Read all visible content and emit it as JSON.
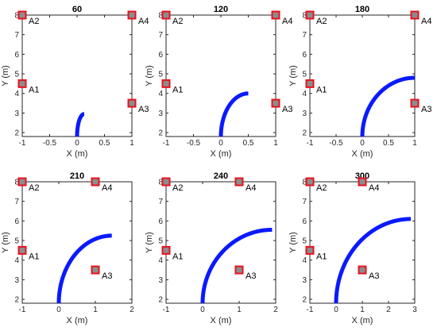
{
  "chart_data": [
    {
      "type": "scatter",
      "title": "60",
      "xlabel": "X (m)",
      "ylabel": "Y (m)",
      "xlim": [
        -1,
        1
      ],
      "ylim": [
        1.8,
        8
      ],
      "xticks": [
        "-1",
        "-0.5",
        "0",
        "0.5",
        "1"
      ],
      "yticks": [
        "2",
        "3",
        "4",
        "5",
        "6",
        "7",
        "8"
      ],
      "anchors": [
        {
          "name": "A1",
          "x": -1,
          "y": 4.5
        },
        {
          "name": "A2",
          "x": -1,
          "y": 8
        },
        {
          "name": "A3",
          "x": 1,
          "y": 3.5
        },
        {
          "name": "A4",
          "x": 1,
          "y": 8
        }
      ],
      "trajectory": {
        "start": [
          0,
          1.8
        ],
        "end": [
          0.13,
          2.95
        ]
      }
    },
    {
      "type": "scatter",
      "title": "120",
      "xlabel": "X (m)",
      "ylabel": "Y (m)",
      "xlim": [
        -1,
        1
      ],
      "ylim": [
        1.8,
        8
      ],
      "xticks": [
        "-1",
        "-0.5",
        "0",
        "0.5",
        "1"
      ],
      "yticks": [
        "2",
        "3",
        "4",
        "5",
        "6",
        "7",
        "8"
      ],
      "anchors": [
        {
          "name": "A1",
          "x": -1,
          "y": 4.5
        },
        {
          "name": "A2",
          "x": -1,
          "y": 8
        },
        {
          "name": "A3",
          "x": 1,
          "y": 3.5
        },
        {
          "name": "A4",
          "x": 1,
          "y": 8
        }
      ],
      "trajectory": {
        "start": [
          0,
          1.8
        ],
        "end": [
          0.5,
          4.0
        ]
      }
    },
    {
      "type": "scatter",
      "title": "180",
      "xlabel": "X (m)",
      "ylabel": "Y (m)",
      "xlim": [
        -1,
        1
      ],
      "ylim": [
        1.8,
        8
      ],
      "xticks": [
        "-1",
        "-0.5",
        "0",
        "0.5",
        "1"
      ],
      "yticks": [
        "2",
        "3",
        "4",
        "5",
        "6",
        "7",
        "8"
      ],
      "anchors": [
        {
          "name": "A1",
          "x": -1,
          "y": 4.5
        },
        {
          "name": "A2",
          "x": -1,
          "y": 8
        },
        {
          "name": "A3",
          "x": 1,
          "y": 3.5
        },
        {
          "name": "A4",
          "x": 1,
          "y": 8
        }
      ],
      "trajectory": {
        "start": [
          0,
          1.8
        ],
        "end": [
          1.0,
          4.8
        ]
      }
    },
    {
      "type": "scatter",
      "title": "210",
      "xlabel": "X (m)",
      "ylabel": "Y (m)",
      "xlim": [
        -1,
        2
      ],
      "ylim": [
        1.8,
        8
      ],
      "xticks": [
        "-1",
        "0",
        "1",
        "2"
      ],
      "yticks": [
        "2",
        "3",
        "4",
        "5",
        "6",
        "7",
        "8"
      ],
      "anchors": [
        {
          "name": "A1",
          "x": -1,
          "y": 4.5
        },
        {
          "name": "A2",
          "x": -1,
          "y": 8
        },
        {
          "name": "A3",
          "x": 1,
          "y": 3.5
        },
        {
          "name": "A4",
          "x": 1,
          "y": 8
        }
      ],
      "trajectory": {
        "start": [
          0,
          1.8
        ],
        "end": [
          1.45,
          5.25
        ]
      }
    },
    {
      "type": "scatter",
      "title": "240",
      "xlabel": "X (m)",
      "ylabel": "Y (m)",
      "xlim": [
        -1,
        2
      ],
      "ylim": [
        1.8,
        8
      ],
      "xticks": [
        "-1",
        "0",
        "1",
        "2"
      ],
      "yticks": [
        "2",
        "3",
        "4",
        "5",
        "6",
        "7",
        "8"
      ],
      "anchors": [
        {
          "name": "A1",
          "x": -1,
          "y": 4.5
        },
        {
          "name": "A2",
          "x": -1,
          "y": 8
        },
        {
          "name": "A3",
          "x": 1,
          "y": 3.5
        },
        {
          "name": "A4",
          "x": 1,
          "y": 8
        }
      ],
      "trajectory": {
        "start": [
          0,
          1.8
        ],
        "end": [
          1.9,
          5.55
        ]
      }
    },
    {
      "type": "scatter",
      "title": "300",
      "xlabel": "X (m)",
      "ylabel": "Y (m)",
      "xlim": [
        -1,
        3
      ],
      "ylim": [
        1.8,
        8
      ],
      "xticks": [
        "-1",
        "0",
        "1",
        "2",
        "3"
      ],
      "yticks": [
        "2",
        "3",
        "4",
        "5",
        "6",
        "7",
        "8"
      ],
      "anchors": [
        {
          "name": "A1",
          "x": -1,
          "y": 4.5
        },
        {
          "name": "A2",
          "x": -1,
          "y": 8
        },
        {
          "name": "A3",
          "x": 1,
          "y": 3.5
        },
        {
          "name": "A4",
          "x": 1,
          "y": 8
        }
      ],
      "trajectory": {
        "start": [
          0,
          1.8
        ],
        "end": [
          2.85,
          6.1
        ]
      }
    }
  ],
  "colors": {
    "trajectory": "#0a1aff",
    "anchor_fill": "#8c8c8c",
    "anchor_border": "#e8121e",
    "axis": "#262626"
  }
}
